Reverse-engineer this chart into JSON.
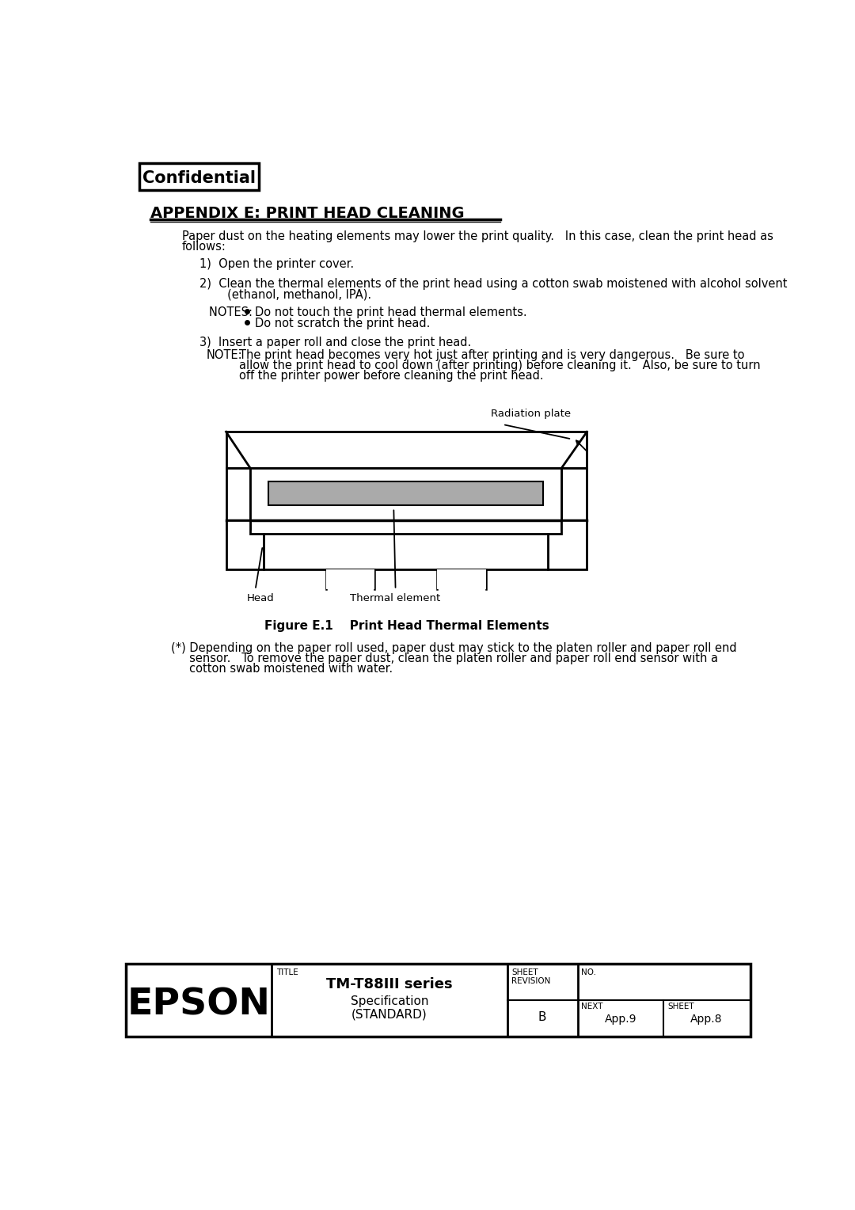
{
  "confidential_text": "Confidential",
  "appendix_title": "APPENDIX E: PRINT HEAD CLEANING",
  "body_text_1a": "Paper dust on the heating elements may lower the print quality.   In this case, clean the print head as",
  "body_text_1b": "follows:",
  "step1": "1)  Open the printer cover.",
  "step2_line1": "2)  Clean the thermal elements of the print head using a cotton swab moistened with alcohol solvent",
  "step2_line2": "     (ethanol, methanol, IPA).",
  "notes_label": "NOTES:  ",
  "note1": "Do not touch the print head thermal elements.",
  "note2": "Do not scratch the print head.",
  "step3": "3)  Insert a paper roll and close the print head.",
  "note_label": "NOTE:",
  "note_long_1": "The print head becomes very hot just after printing and is very dangerous.   Be sure to",
  "note_long_2": "allow the print head to cool down (after printing) before cleaning it.   Also, be sure to turn",
  "note_long_3": "off the printer power before cleaning the print head.",
  "fig_caption": "Figure E.1    Print Head Thermal Elements",
  "footnote_line1": "(*) Depending on the paper roll used, paper dust may stick to the platen roller and paper roll end",
  "footnote_line2": "     sensor.   To remove the paper dust, clean the platen roller and paper roll end sensor with a",
  "footnote_line3": "     cotton swab moistened with water.",
  "radiation_plate_label": "Radiation plate",
  "head_label": "Head",
  "thermal_element_label": "Thermal element",
  "epson_text": "EPSON",
  "title_label": "TITLE",
  "series_title": "TM-T88III series",
  "spec_subtitle": "Specification",
  "standard_text": "(STANDARD)",
  "sheet_label": "SHEET",
  "revision_label": "REVISION",
  "no_label": "NO.",
  "revision_value": "B",
  "next_label": "NEXT",
  "next_value": "App.9",
  "sheet_label2": "SHEET",
  "sheet_value": "App.8",
  "bg_color": "#ffffff",
  "text_color": "#000000",
  "diagram_fill_gray": "#aaaaaa"
}
